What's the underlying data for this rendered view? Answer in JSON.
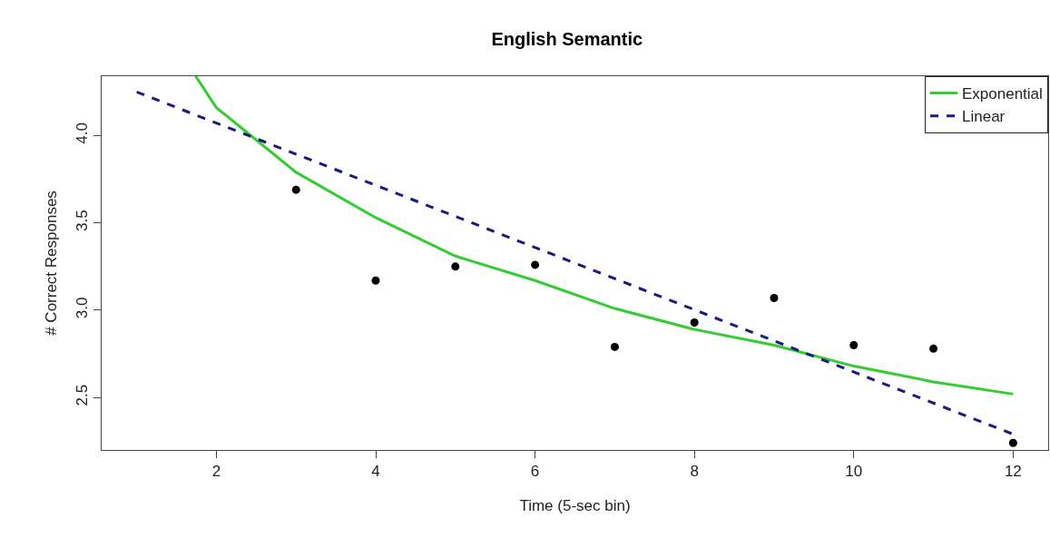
{
  "chart_data": {
    "type": "scatter",
    "title": "English Semantic",
    "xlabel": "Time (5-sec bin)",
    "ylabel": "# Correct Responses",
    "x": [
      3,
      4,
      5,
      6,
      7,
      8,
      9,
      10,
      11,
      12
    ],
    "series": [
      {
        "color": "#000000",
        "marker": "circle",
        "values": [
          3.69,
          3.17,
          3.25,
          3.26,
          2.79,
          2.93,
          3.07,
          2.8,
          2.78,
          2.24
        ]
      },
      {
        "type": "line",
        "name": "Exponential",
        "color": "#33cc33",
        "line_style": "solid",
        "marker": "none",
        "x": [
          1.74,
          2,
          3,
          4,
          5,
          6,
          7,
          8,
          9,
          10,
          11,
          12
        ],
        "values": [
          4.34,
          4.16,
          3.79,
          3.53,
          3.31,
          3.17,
          3.01,
          2.89,
          2.8,
          2.68,
          2.59,
          2.52
        ]
      },
      {
        "type": "line",
        "name": "Linear",
        "color": "#1a1a80",
        "line_style": "dashed",
        "marker": "none",
        "x": [
          1,
          12
        ],
        "values": [
          4.25,
          2.29
        ]
      }
    ],
    "xlim": [
      0.56,
      12.44
    ],
    "xticks": [
      2,
      4,
      6,
      8,
      10,
      12
    ],
    "ylim": [
      2.2,
      4.34
    ],
    "yticks": [
      2.5,
      {
        "value": 3,
        "label": "3.0"
      },
      3.5,
      {
        "value": 4,
        "label": "4.0"
      }
    ],
    "legend": "top right"
  }
}
